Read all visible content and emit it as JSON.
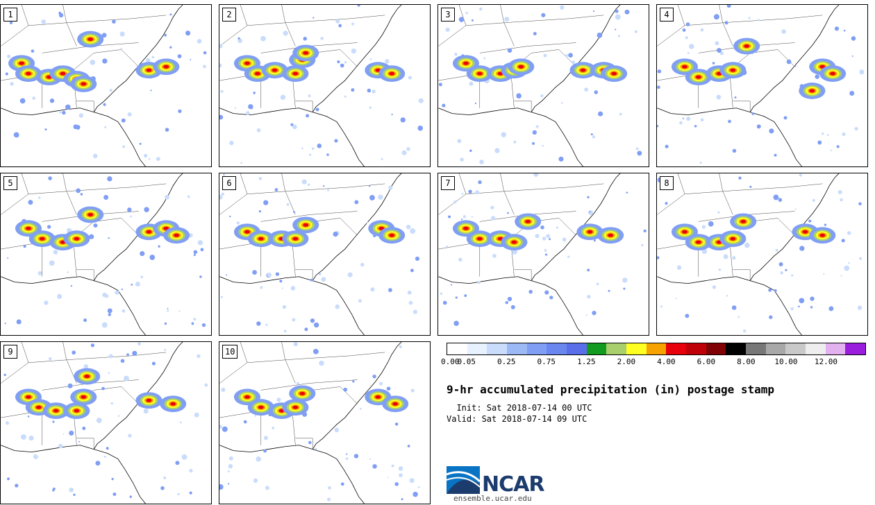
{
  "panels": [
    {
      "label": "1"
    },
    {
      "label": "2"
    },
    {
      "label": "3"
    },
    {
      "label": "4"
    },
    {
      "label": "5"
    },
    {
      "label": "6"
    },
    {
      "label": "7"
    },
    {
      "label": "8"
    },
    {
      "label": "9"
    },
    {
      "label": "10"
    }
  ],
  "colorbar": {
    "colors": [
      "#ffffff",
      "#e8f2ff",
      "#c9dcfb",
      "#9db9f5",
      "#7f9ef4",
      "#6a86ef",
      "#5a6ee9",
      "#129b1f",
      "#a9cf6d",
      "#ffff22",
      "#f6a200",
      "#e8000b",
      "#c00009",
      "#7f0204",
      "#000000",
      "#777777",
      "#a8a8a8",
      "#c9c9c9",
      "#eeeeee",
      "#e3b1f0",
      "#9a1dde"
    ],
    "tick_labels": [
      "0.00",
      "0.05",
      "0.25",
      "0.75",
      "1.25",
      "2.00",
      "4.00",
      "6.00",
      "8.00",
      "10.00",
      "12.00"
    ]
  },
  "title": "9-hr accumulated precipitation (in) postage stamp",
  "init": "  Init: Sat 2018-07-14 00 UTC",
  "valid": "Valid: Sat 2018-07-14 09 UTC",
  "logo": {
    "name": "NCAR",
    "url": "ensemble.ucar.edu"
  }
}
